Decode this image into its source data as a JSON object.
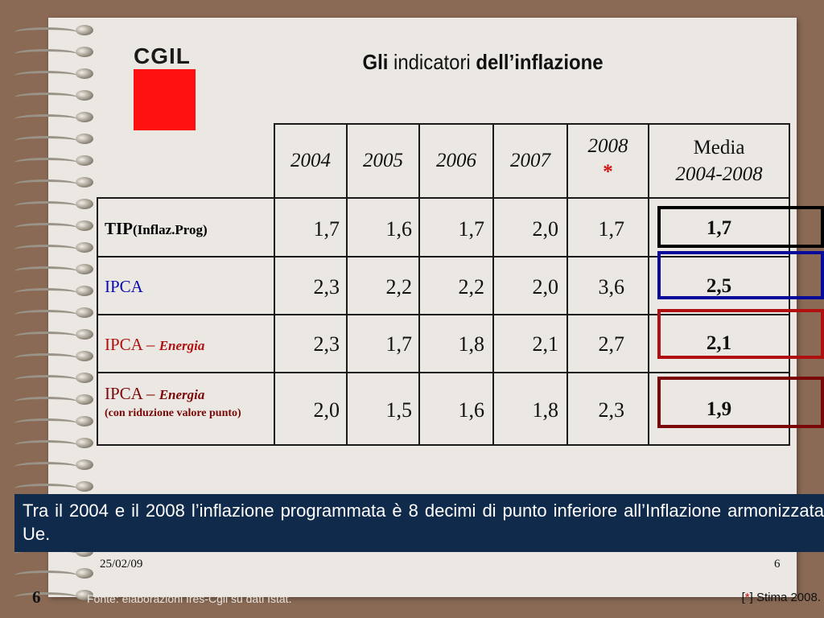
{
  "title": {
    "part1": "Gli",
    "part2": " indicatori ",
    "part3": "dell’inflazione"
  },
  "logo": {
    "text": "CGIL"
  },
  "table": {
    "headers": [
      "2004",
      "2005",
      "2006",
      "2007"
    ],
    "header_2008": "2008",
    "header_2008_mark": "*",
    "header_media": "Media",
    "header_media_range": "2004-2008",
    "rows": [
      {
        "label_main": "TIP",
        "label_sub": "(Inflaz.Prog)",
        "values": [
          "1,7",
          "1,6",
          "1,7",
          "2,0",
          "1,7"
        ],
        "media": "1,7",
        "color": "#000000"
      },
      {
        "label_main": "IPCA",
        "label_sub": "",
        "values": [
          "2,3",
          "2,2",
          "2,2",
          "2,0",
          "3,6"
        ],
        "media": "2,5",
        "color": "#0a0a9a"
      },
      {
        "label_main": "IPCA – ",
        "label_sub": "Energia",
        "values": [
          "2,3",
          "1,7",
          "1,8",
          "2,1",
          "2,7"
        ],
        "media": "2,1",
        "color": "#b01010"
      },
      {
        "label_main": "IPCA – ",
        "label_sub": "Energia",
        "label_note": "(con riduzione valore punto)",
        "values": [
          "2,0",
          "1,5",
          "1,6",
          "1,8",
          "2,3"
        ],
        "media": "1,9",
        "color": "#7a0808"
      }
    ]
  },
  "note": "Tra il 2004 e il 2008 l’inflazione programmata è 8 decimi di punto inferiore all’Inflazione armonizzata Ue.",
  "footer": {
    "date": "25/02/09",
    "page": "6",
    "slide_number": "6",
    "source": "Fonte: elaborazioni Ires-Cgil su dati Istat.",
    "estimate_open": "[",
    "estimate_star": "*",
    "estimate_close": "] Stima 2008."
  }
}
